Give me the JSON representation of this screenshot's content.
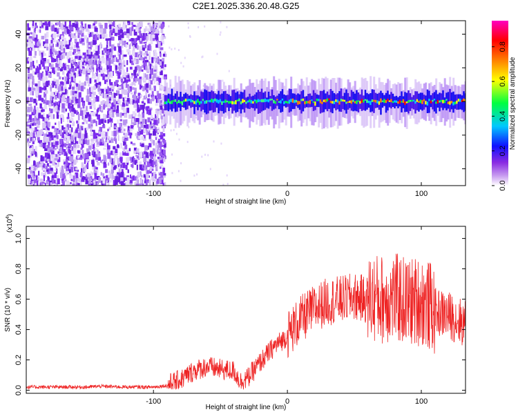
{
  "title": "C2E1.2025.336.20.48.G25",
  "chart_data": [
    {
      "type": "heatmap",
      "name": "spectrogram",
      "xlabel": "Height of straight line (km)",
      "ylabel": "Frequency (Hz)",
      "xlim": [
        -195,
        133
      ],
      "ylim": [
        -50,
        48
      ],
      "xticks": [
        -100,
        0,
        100
      ],
      "xtick_labels": [
        "-100",
        "0",
        "100"
      ],
      "yticks": [
        -40,
        -20,
        0,
        20,
        40
      ],
      "ytick_labels": [
        "-40",
        "-20",
        "0",
        "20",
        "40"
      ],
      "noise_region_x": [
        -195,
        -92
      ],
      "signal_band_center_hz": 0,
      "signal_band_halfwidth_hz": 6,
      "colorbar": {
        "label": "Normalized spectral amplitude",
        "range": [
          0,
          0.95
        ],
        "ticks": [
          0.0,
          0.2,
          0.4,
          0.6,
          0.8
        ],
        "tick_labels": [
          "0.0",
          "0.2",
          "0.4",
          "0.6",
          "0.8"
        ],
        "colors": [
          "#ffffff",
          "#8a2be2",
          "#1010ff",
          "#00c8ff",
          "#00ff40",
          "#ffff00",
          "#ff8000",
          "#ff0000",
          "#ff00c0"
        ]
      }
    },
    {
      "type": "line",
      "name": "snr",
      "xlabel": "Height of straight line (km)",
      "ylabel": "SNR (10 * v/v)",
      "scale_label": "(x10",
      "scale_exponent": "4",
      "scale_suffix": ")",
      "xlim": [
        -195,
        133
      ],
      "ylim": [
        -0.02,
        1.08
      ],
      "xticks": [
        -100,
        0,
        100
      ],
      "xtick_labels": [
        "-100",
        "0",
        "100"
      ],
      "yticks": [
        0.0,
        0.2,
        0.4,
        0.6,
        0.8,
        1.0
      ],
      "ytick_labels": [
        "0.0",
        "0.2",
        "0.4",
        "0.6",
        "0.8",
        "1.0"
      ],
      "color": "#ee2222",
      "envelope": {
        "x": [
          -195,
          -150,
          -140,
          -120,
          -100,
          -90,
          -80,
          -70,
          -60,
          -50,
          -40,
          -35,
          -30,
          -20,
          -10,
          0,
          10,
          20,
          30,
          40,
          50,
          60,
          70,
          80,
          90,
          100,
          110,
          120,
          133
        ],
        "y": [
          0.02,
          0.02,
          0.025,
          0.02,
          0.02,
          0.03,
          0.06,
          0.12,
          0.15,
          0.13,
          0.12,
          0.05,
          0.07,
          0.18,
          0.28,
          0.35,
          0.45,
          0.52,
          0.57,
          0.58,
          0.6,
          0.58,
          0.57,
          0.58,
          0.55,
          0.56,
          0.5,
          0.48,
          0.42
        ]
      }
    }
  ]
}
